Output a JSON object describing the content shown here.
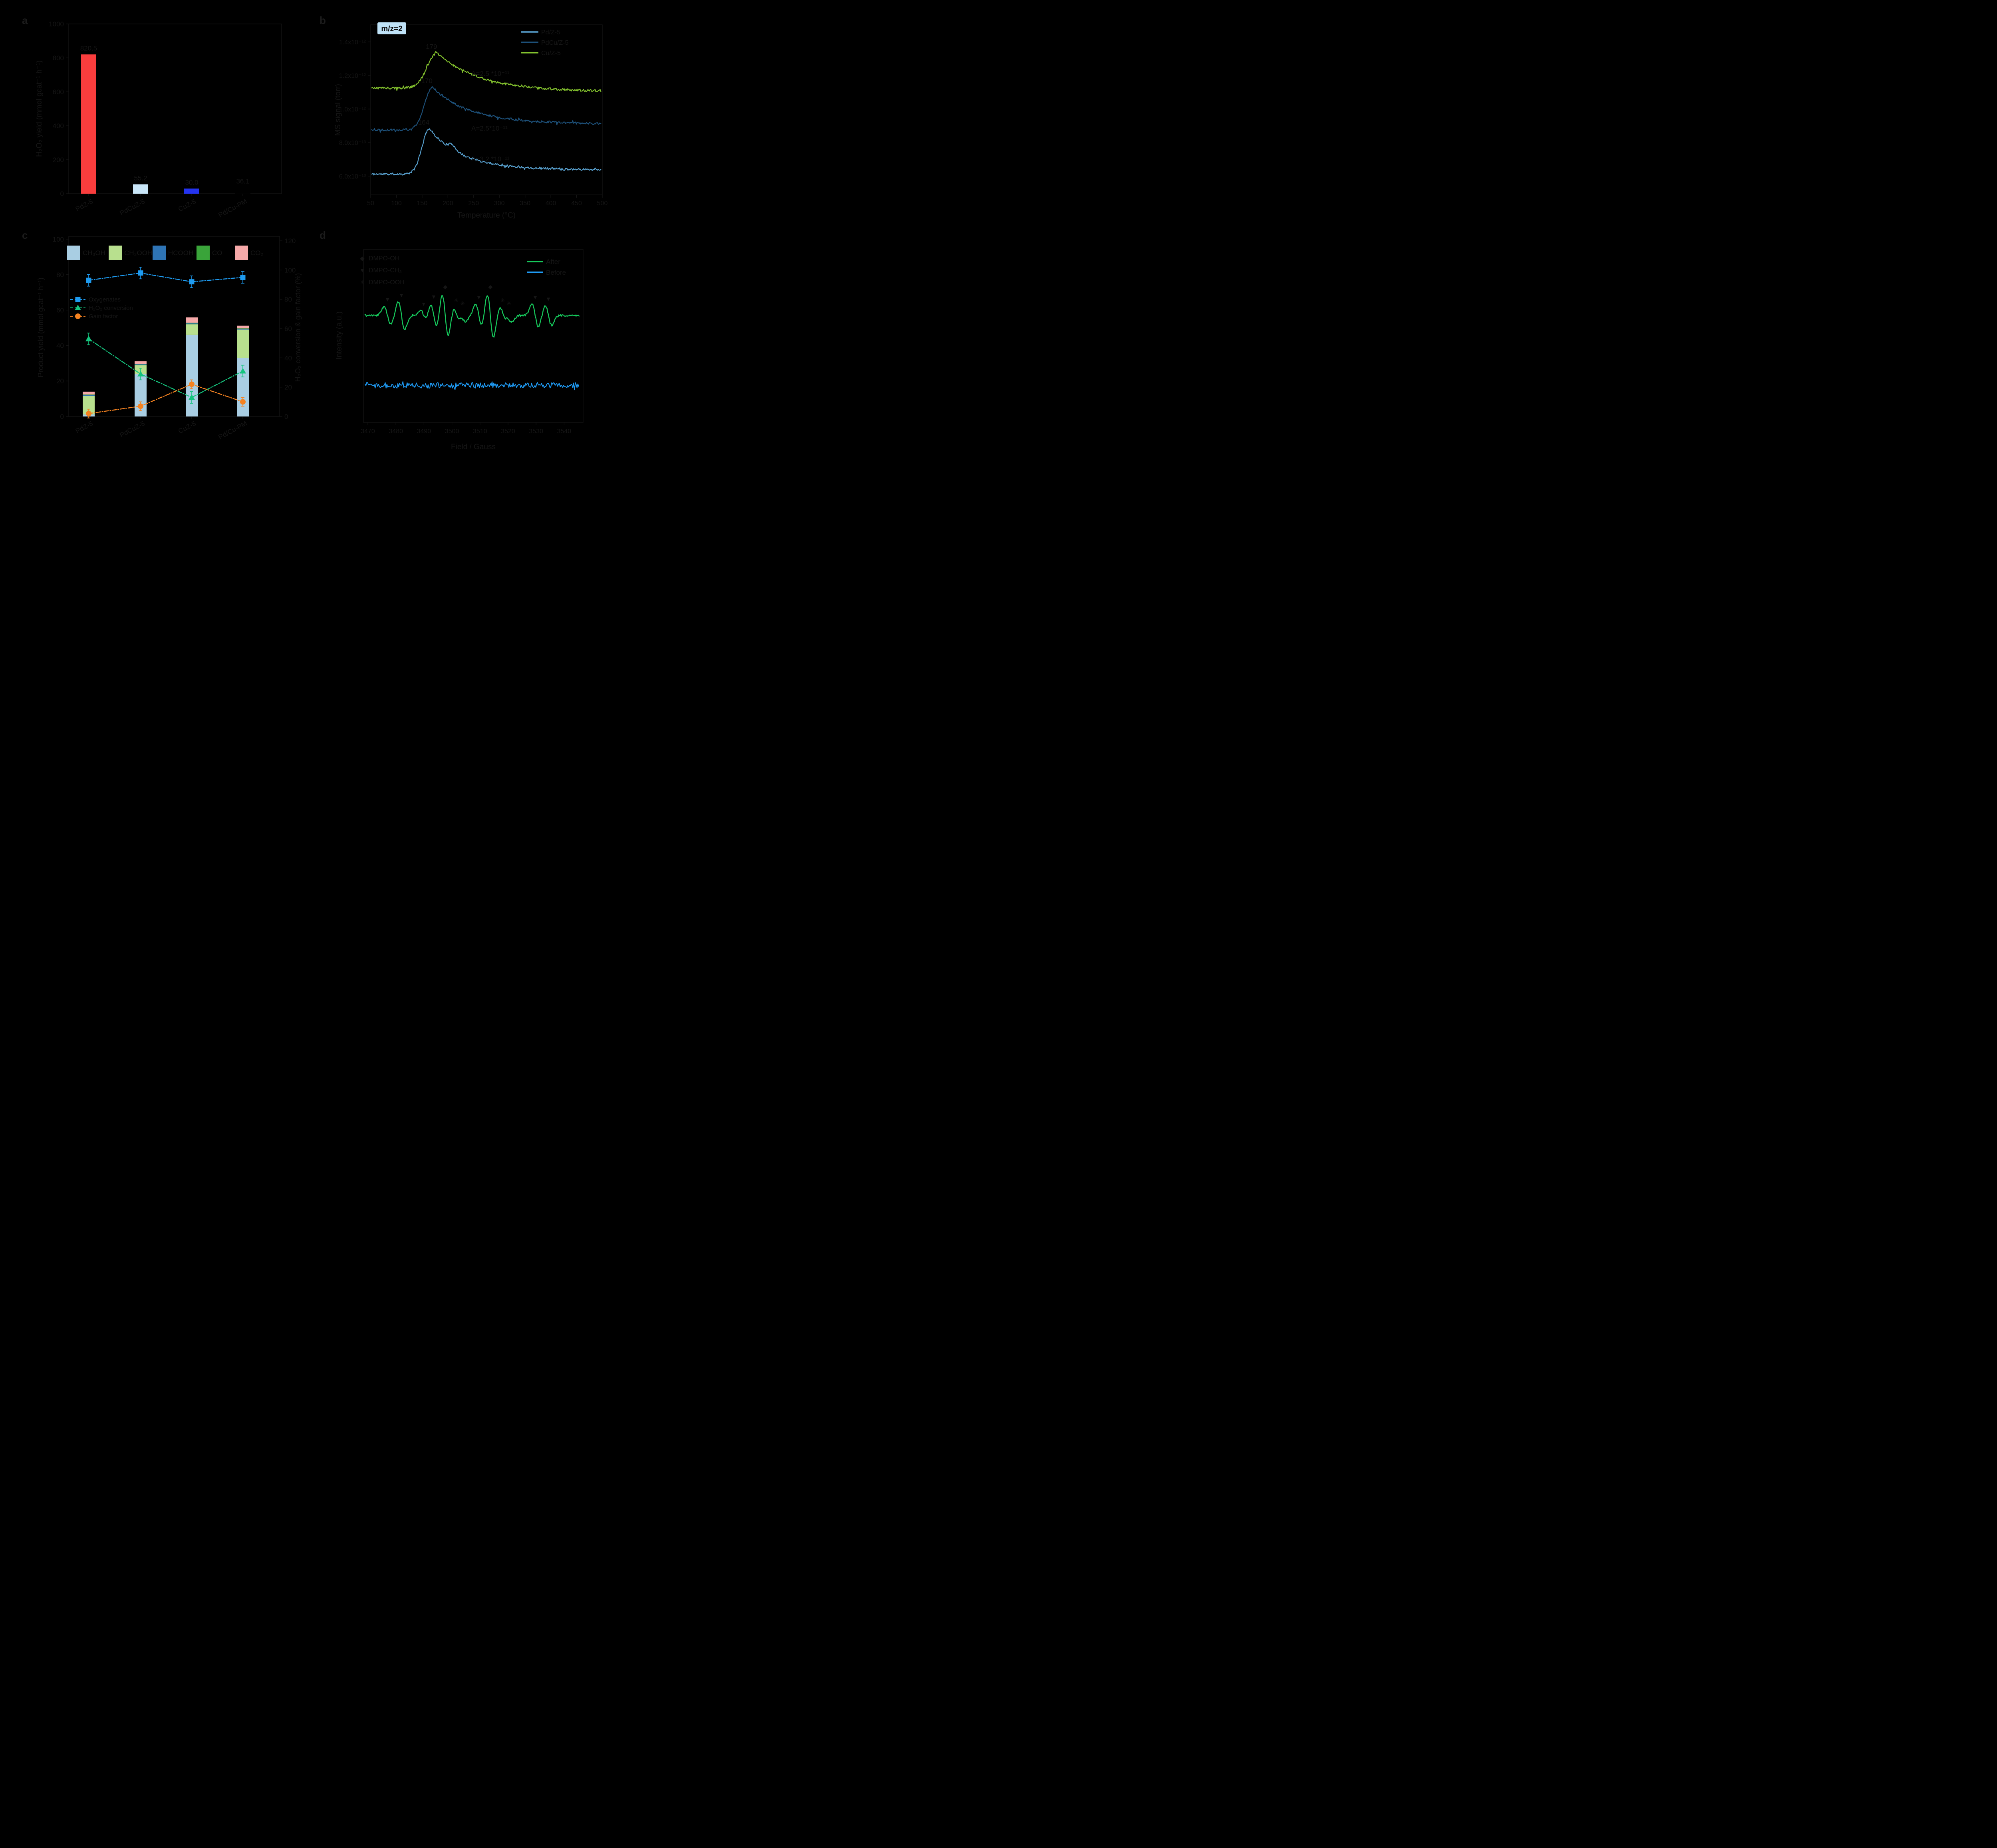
{
  "figure": {
    "background": "#000000",
    "text_color": "#161616",
    "panel_labels": {
      "a": "a",
      "b": "b",
      "c": "c",
      "d": "d"
    }
  },
  "chart_data": [
    {
      "id": "a",
      "type": "bar",
      "ylabel": "H₂O₂ yield (mmol gcat⁻¹ h⁻¹)",
      "ylim": [
        0,
        1100
      ],
      "yticks": [
        0,
        200,
        400,
        600,
        800,
        1000
      ],
      "categories": [
        "PdZ-5",
        "PdCuZ-5",
        "CuZ-5",
        "Pd/Cu-PM"
      ],
      "values": [
        820.5,
        55.2,
        30.0,
        36.1
      ],
      "value_labels": [
        "820.5",
        "55.2",
        "30.0",
        "36.1"
      ],
      "bar_colors": [
        "#fa3d3d",
        "#c9e6f8",
        "#2433f0",
        "#000000"
      ]
    },
    {
      "id": "b",
      "type": "line",
      "badge": "m/z=2",
      "badge_bg": "#bfe2f7",
      "xlabel": "Temperature (°C)",
      "ylabel": "MS signal (torr)",
      "xlim": [
        50,
        500
      ],
      "xticks": [
        50,
        100,
        150,
        200,
        250,
        300,
        350,
        400,
        450,
        500
      ],
      "ytick_labels": [
        "6.0x10⁻¹³",
        "8.0x10⁻¹³",
        "1.0x10⁻¹²",
        "1.2x10⁻¹²",
        "1.4x10⁻¹²"
      ],
      "ytick_values": [
        6e-13,
        8e-13,
        1e-12,
        1.2e-12,
        1.4e-12
      ],
      "series": [
        {
          "name": "Pd/Z-5",
          "color": "#58a0ce",
          "baseline": 6.12e-13,
          "peak_temp": 164,
          "peak_height": 2.71e-13,
          "tail_offset": 3.7e-14,
          "sigma": 14,
          "tau": 60,
          "noise": 6.5e-15,
          "seed": 11,
          "peak_label": "164",
          "annotation": "A=3.2 *10⁻¹¹",
          "ann_y": 404,
          "shoulder": 1
        },
        {
          "name": "PdCu/Z-5",
          "color": "#1d5079",
          "baseline": 8.76e-13,
          "peak_temp": 170,
          "peak_height": 2.55e-13,
          "tail_offset": 5e-14,
          "sigma": 15,
          "tau": 68,
          "noise": 6.5e-15,
          "seed": 22,
          "peak_label": "170",
          "annotation": "A=2.5*10⁻¹¹",
          "ann_y": 327,
          "shoulder": 0
        },
        {
          "name": "Cu/Z-5",
          "color": "#84c32e",
          "baseline": 1.125e-12,
          "peak_temp": 179,
          "peak_height": 2.1e-13,
          "tail_offset": -3e-14,
          "sigma": 19,
          "tau": 85,
          "noise": 7e-15,
          "seed": 33,
          "peak_label": "179",
          "annotation": "A=2.5 *10⁻¹¹",
          "ann_y": 190,
          "shoulder": 0
        }
      ]
    },
    {
      "id": "c",
      "type": "bar-line",
      "ylabel_left": "Product yield (mmol gcat⁻¹ h⁻¹)",
      "ylabel_right": "H₂O₂ conversion & gain factor (%)",
      "ylim_left": [
        0,
        110
      ],
      "yticks_left": [
        0,
        20,
        40,
        60,
        80,
        100
      ],
      "ylim_right": [
        0,
        132
      ],
      "yticks_right": [
        0,
        20,
        40,
        60,
        80,
        100,
        120
      ],
      "categories": [
        "PdZ-5",
        "PdCuZ-5",
        "CuZ-5",
        "Pd/Cu-PM"
      ],
      "stack_series": [
        {
          "name": "CH₃OH",
          "color": "#a9cee3",
          "values": [
            1.2,
            24.0,
            46.0,
            33.0
          ]
        },
        {
          "name": "CH₃OOH",
          "color": "#b8e08e",
          "values": [
            10.5,
            5.0,
            6.0,
            16.0
          ]
        },
        {
          "name": "HCOOH",
          "color": "#2e74b5",
          "values": [
            0.4,
            0.4,
            0.5,
            0.4
          ]
        },
        {
          "name": "CO",
          "color": "#3aa43a",
          "values": [
            0.3,
            0.3,
            0.4,
            0.3
          ]
        },
        {
          "name": "CO₂",
          "color": "#f6a9a9",
          "values": [
            1.6,
            1.5,
            3.0,
            1.5
          ]
        }
      ],
      "marker_series": [
        {
          "name": "Oxygenates",
          "marker": "square",
          "color": "#1e9bf0",
          "values": [
            93,
            98,
            92,
            95
          ],
          "error": 4
        },
        {
          "name": "H₂O₂ conversion",
          "marker": "triangle",
          "color": "#15c47e",
          "values": [
            53,
            29,
            13,
            31
          ],
          "error": 4
        },
        {
          "name": "Gain factor",
          "marker": "circle",
          "color": "#f58220",
          "values": [
            2,
            7,
            22,
            10
          ],
          "error": 3
        }
      ]
    },
    {
      "id": "d",
      "type": "line",
      "xlabel": "Field / Gauss",
      "ylabel": "Intensity (a.u.)",
      "xlim": [
        3465,
        3546
      ],
      "xticks": [
        3470,
        3480,
        3490,
        3500,
        3510,
        3520,
        3530,
        3540
      ],
      "series": [
        {
          "name": "After",
          "color": "#16c95c"
        },
        {
          "name": "Before",
          "color": "#1f9bf5"
        }
      ],
      "adduct_legend": [
        {
          "symbol": "◆",
          "label": "DMPO-OH"
        },
        {
          "symbol": "▼",
          "label": "DMPO-CH₃"
        },
        {
          "symbol": "✳",
          "label": "DMPO-OOH"
        }
      ],
      "peaks": [
        {
          "g": 3477.0,
          "amp": 0.42,
          "marker": "▼"
        },
        {
          "g": 3482.0,
          "amp": 0.62,
          "marker": "▼"
        },
        {
          "g": 3489.9,
          "amp": 0.22,
          "marker": "▼"
        },
        {
          "g": 3493.5,
          "amp": 0.55,
          "marker": "▼"
        },
        {
          "g": 3497.6,
          "amp": 1.0,
          "marker": "◆"
        },
        {
          "g": 3501.5,
          "amp": 0.38,
          "marker": "✳"
        },
        {
          "g": 3503.8,
          "amp": 0.25,
          "marker": "✳"
        },
        {
          "g": 3509.6,
          "amp": 0.52,
          "marker": "▼"
        },
        {
          "g": 3513.7,
          "amp": 1.0,
          "marker": "◆"
        },
        {
          "g": 3518.1,
          "amp": 0.38,
          "marker": "✳"
        },
        {
          "g": 3520.3,
          "amp": 0.25,
          "marker": "✳"
        },
        {
          "g": 3529.7,
          "amp": 0.52,
          "marker": "▼"
        },
        {
          "g": 3534.4,
          "amp": 0.45,
          "marker": "▼"
        }
      ]
    }
  ]
}
